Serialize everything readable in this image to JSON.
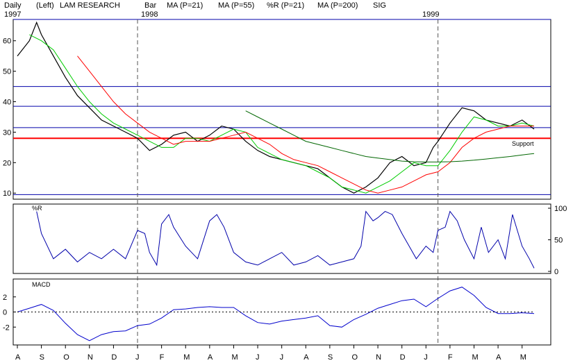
{
  "header": {
    "period": "Daily",
    "scale": "(Left)",
    "symbol": "LAM RESEARCH",
    "bar_label": "Bar",
    "ma21_label": "MA (P=21)",
    "ma55_label": "MA (P=55)",
    "pctr_label": "%R (P=21)",
    "ma200_label": "MA (P=200)",
    "sig_label": "SIG",
    "year_1997": "1997",
    "year_1998": "1998",
    "year_1999": "1999"
  },
  "colors": {
    "ma21": "#00cc00",
    "ma55": "#ff0000",
    "ma200": "#006600",
    "pctr": "#0000aa",
    "sig": "#0000ff",
    "price": "#000000",
    "hline": "#0000aa",
    "support": "#ff0000",
    "indicator": "#0000cc"
  },
  "chart_data": [
    {
      "type": "line",
      "panel": "price",
      "ylim": [
        8,
        67
      ],
      "y_ticks": [
        "60",
        "50",
        "40",
        "30",
        "20",
        "10"
      ],
      "y_tick_values": [
        60,
        50,
        40,
        30,
        20,
        10
      ],
      "x_labels": [
        "A",
        "S",
        "O",
        "N",
        "D",
        "J",
        "F",
        "M",
        "A",
        "M",
        "J",
        "J",
        "A",
        "S",
        "O",
        "N",
        "D",
        "J",
        "F",
        "M",
        "A",
        "M"
      ],
      "horizontal_levels": [
        67,
        45,
        38.5,
        31.5,
        9.5
      ],
      "support_level": 28,
      "support_label": "Support",
      "series": [
        {
          "name": "LAM RESEARCH",
          "role": "price",
          "x": [
            0,
            0.5,
            0.8,
            1,
            1.5,
            2,
            2.5,
            3,
            3.5,
            4,
            4.5,
            5,
            5.5,
            6,
            6.5,
            7,
            7.5,
            8,
            8.5,
            9,
            9.5,
            10,
            10.5,
            11,
            11.5,
            12,
            12.5,
            13,
            13.5,
            14,
            14.5,
            15,
            15.5,
            16,
            16.5,
            17,
            17.3,
            17.5,
            18,
            18.5,
            19,
            19.5,
            20,
            20.5,
            21,
            21.5
          ],
          "values": [
            55,
            60,
            66,
            62,
            55,
            48,
            42,
            38,
            34,
            32,
            30,
            28,
            24,
            26,
            29,
            30,
            27,
            29,
            32,
            31,
            27,
            24,
            22,
            21,
            20,
            19,
            18,
            15,
            12,
            10,
            12,
            15,
            20,
            22,
            19,
            20,
            25,
            27,
            33,
            38,
            37,
            34,
            33,
            32,
            34,
            31
          ]
        },
        {
          "name": "MA (P=21)",
          "x": [
            0.5,
            1,
            1.5,
            2,
            2.5,
            3,
            3.5,
            4,
            4.5,
            5,
            5.5,
            6,
            6.5,
            7,
            7.5,
            8,
            8.5,
            9,
            9.5,
            10,
            10.5,
            11,
            11.5,
            12,
            12.5,
            13,
            13.5,
            14,
            14.5,
            15,
            15.5,
            16,
            16.5,
            17,
            17.5,
            18,
            18.5,
            19,
            19.5,
            20,
            20.5,
            21,
            21.5
          ],
          "values": [
            62,
            60,
            57,
            51,
            45,
            40,
            36,
            33,
            31,
            29,
            27,
            25,
            25,
            28,
            28,
            27,
            29,
            31,
            30,
            25,
            23,
            21,
            20,
            19,
            17,
            15,
            12,
            11,
            10,
            12,
            14,
            17,
            20,
            19,
            19,
            24,
            30,
            35,
            34,
            32,
            32,
            33,
            32
          ]
        },
        {
          "name": "MA (P=55)",
          "x": [
            2.5,
            3,
            3.5,
            4,
            4.5,
            5,
            5.5,
            6,
            6.5,
            7,
            7.5,
            8,
            8.5,
            9,
            9.5,
            10,
            10.5,
            11,
            11.5,
            12,
            12.5,
            13,
            13.5,
            14,
            14.5,
            15,
            15.5,
            16,
            16.5,
            17,
            17.5,
            18,
            18.5,
            19,
            19.5,
            20,
            20.5,
            21,
            21.5
          ],
          "values": [
            55,
            50,
            45,
            40,
            36,
            33,
            30,
            28,
            26,
            27,
            27,
            27,
            28,
            29,
            30,
            28,
            26,
            23,
            21,
            20,
            19,
            17,
            15,
            13,
            11,
            10,
            11,
            12,
            14,
            16,
            17,
            20,
            25,
            28,
            30,
            31,
            32,
            32,
            32
          ]
        },
        {
          "name": "MA (P=200)",
          "x": [
            9.5,
            10,
            10.5,
            11,
            11.5,
            12,
            12.5,
            13,
            13.5,
            14,
            14.5,
            15,
            15.5,
            16,
            16.5,
            17,
            17.5,
            18,
            18.5,
            19,
            19.5,
            20,
            20.5,
            21,
            21.5
          ],
          "values": [
            37,
            35,
            33,
            31,
            29,
            27,
            26,
            25,
            24,
            23,
            22,
            21.5,
            21,
            20.5,
            20.3,
            20.2,
            20.2,
            20.3,
            20.5,
            20.8,
            21.2,
            21.6,
            22,
            22.5,
            23
          ]
        }
      ]
    },
    {
      "type": "line",
      "panel": "%R",
      "title": "%R",
      "ylim": [
        0,
        100
      ],
      "y_ticks": [
        "100",
        "50",
        "0"
      ],
      "y_tick_values": [
        100,
        50,
        0
      ],
      "series": [
        {
          "name": "%R (P=21)",
          "x": [
            0.8,
            1,
            1.5,
            2,
            2.5,
            3,
            3.5,
            4,
            4.5,
            5,
            5.3,
            5.5,
            5.8,
            6,
            6.3,
            6.5,
            7,
            7.5,
            8,
            8.3,
            8.6,
            9,
            9.5,
            10,
            10.5,
            11,
            11.5,
            12,
            12.5,
            13,
            13.5,
            14,
            14.3,
            14.5,
            14.8,
            15,
            15.3,
            15.6,
            16,
            16.3,
            16.6,
            17,
            17.3,
            17.5,
            17.8,
            18,
            18.3,
            18.6,
            19,
            19.3,
            19.6,
            20,
            20.3,
            20.6,
            21,
            21.3,
            21.5
          ],
          "values": [
            95,
            60,
            20,
            35,
            15,
            30,
            20,
            35,
            20,
            65,
            60,
            30,
            10,
            75,
            90,
            70,
            40,
            20,
            80,
            90,
            70,
            30,
            15,
            10,
            20,
            30,
            10,
            15,
            25,
            10,
            15,
            20,
            40,
            95,
            80,
            85,
            95,
            90,
            60,
            40,
            20,
            40,
            30,
            65,
            70,
            95,
            80,
            50,
            20,
            70,
            30,
            50,
            20,
            90,
            40,
            20,
            5
          ]
        }
      ]
    },
    {
      "type": "line",
      "panel": "MACD",
      "title": "MACD",
      "ylim": [
        -4,
        4
      ],
      "y_ticks": [
        "2",
        "0",
        "-2"
      ],
      "y_tick_values": [
        2,
        0,
        -2
      ],
      "series": [
        {
          "name": "MACD",
          "x": [
            0,
            0.5,
            1,
            1.5,
            2,
            2.5,
            3,
            3.5,
            4,
            4.5,
            5,
            5.5,
            6,
            6.5,
            7,
            7.5,
            8,
            8.5,
            9,
            9.5,
            10,
            10.5,
            11,
            11.5,
            12,
            12.5,
            13,
            13.5,
            14,
            14.5,
            15,
            15.5,
            16,
            16.5,
            17,
            17.5,
            18,
            18.5,
            19,
            19.5,
            20,
            20.5,
            21,
            21.5
          ],
          "values": [
            0,
            0.5,
            1,
            0.2,
            -1.5,
            -3,
            -3.8,
            -3,
            -2.6,
            -2.5,
            -1.8,
            -1.6,
            -0.8,
            0.3,
            0.4,
            0.6,
            0.7,
            0.6,
            0.6,
            -0.5,
            -1.4,
            -1.6,
            -1.2,
            -1,
            -0.8,
            -0.5,
            -1.8,
            -2,
            -1,
            -0.3,
            0.5,
            1,
            1.5,
            1.7,
            0.7,
            1.8,
            2.8,
            3.3,
            2.2,
            0.6,
            -0.2,
            -0.2,
            -0.1,
            -0.2
          ]
        },
        {
          "name": "SIG",
          "role": "zero-line",
          "x": [
            0,
            21.5
          ],
          "values": [
            0,
            0
          ]
        }
      ]
    }
  ]
}
